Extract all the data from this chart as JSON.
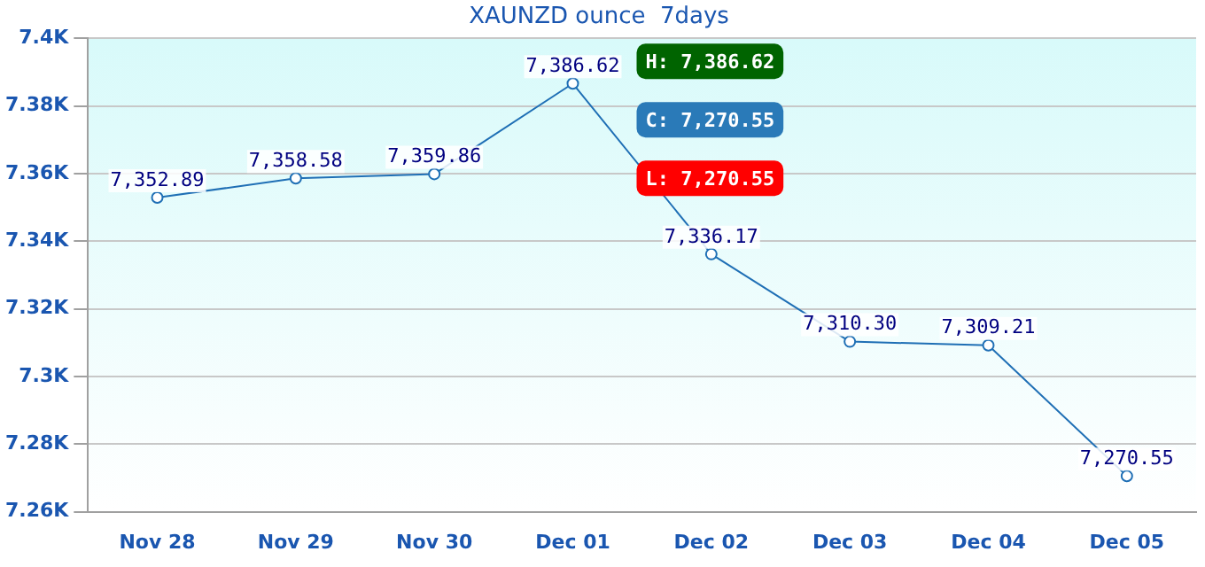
{
  "chart_data": {
    "type": "line",
    "title": "XAUNZD ounce  7days",
    "categories": [
      "Nov 28",
      "Nov 29",
      "Nov 30",
      "Dec 01",
      "Dec 02",
      "Dec 03",
      "Dec 04",
      "Dec 05"
    ],
    "series": [
      {
        "color": "#1f6fb5",
        "values": [
          7352.89,
          7358.58,
          7359.86,
          7386.62,
          7336.17,
          7310.3,
          7309.21,
          7270.55
        ],
        "value_labels": [
          "7,352.89",
          "7,358.58",
          "7,359.86",
          "7,386.62",
          "7,336.17",
          "7,310.30",
          "7,309.21",
          "7,270.55"
        ]
      }
    ],
    "ylim": [
      7260,
      7400
    ],
    "yticks": [
      {
        "value": 7260,
        "label": "7.26K"
      },
      {
        "value": 7280,
        "label": "7.28K"
      },
      {
        "value": 7300,
        "label": "7.3K"
      },
      {
        "value": 7320,
        "label": "7.32K"
      },
      {
        "value": 7340,
        "label": "7.34K"
      },
      {
        "value": 7360,
        "label": "7.36K"
      },
      {
        "value": 7380,
        "label": "7.38K"
      },
      {
        "value": 7400,
        "label": "7.4K"
      }
    ],
    "grid": "y",
    "marker": "circle",
    "line_style": "solid",
    "legend": false,
    "annotations": [
      "H: 7,386.62",
      "C: 7,270.55",
      "L: 7,270.55"
    ]
  }
}
